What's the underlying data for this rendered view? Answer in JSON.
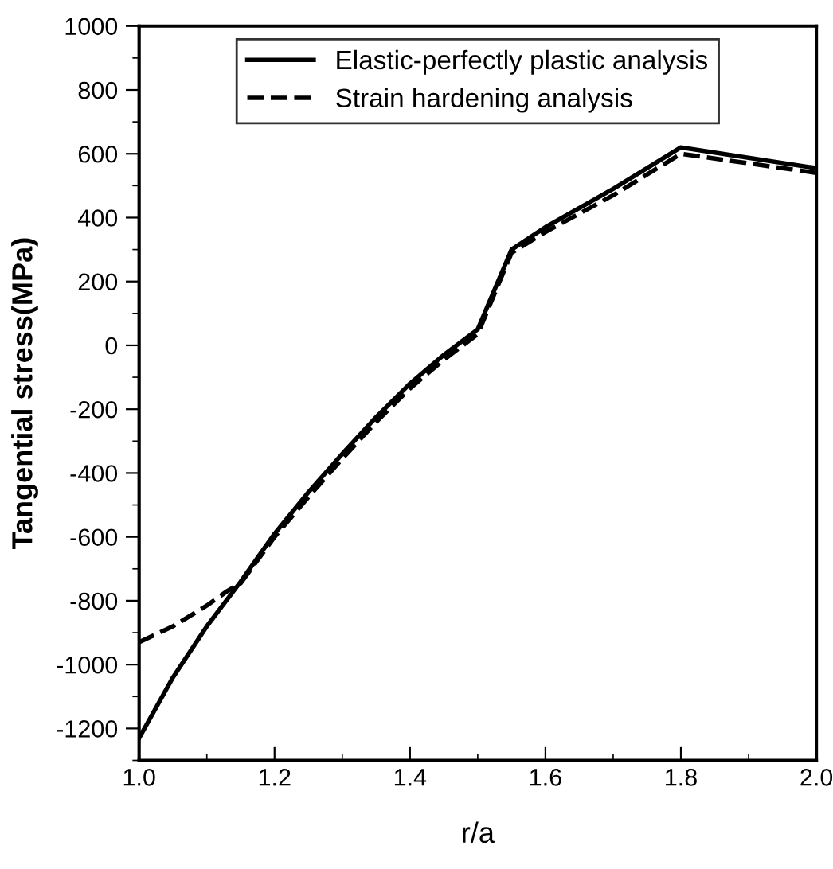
{
  "chart_data": {
    "type": "line",
    "xlabel": "r/a",
    "ylabel": "Tangential stress(MPa)",
    "xlim": [
      1.0,
      2.0
    ],
    "xticks": [
      {
        "value": 1.0,
        "label": "1.0"
      },
      {
        "value": 1.2,
        "label": "1.2"
      },
      {
        "value": 1.4,
        "label": "1.4"
      },
      {
        "value": 1.6,
        "label": "1.6"
      },
      {
        "value": 1.8,
        "label": "1.8"
      },
      {
        "value": 2.0,
        "label": "2.0"
      }
    ],
    "ylim": [
      -1300,
      1000
    ],
    "yticks": [
      -1200,
      -1000,
      -800,
      -600,
      -400,
      -200,
      0,
      200,
      400,
      600,
      800,
      1000
    ],
    "grid": false,
    "legend": "top",
    "marker": "none",
    "series": [
      {
        "name": "Elastic-perfectly plastic analysis",
        "color": "#000000",
        "line_style": "solid",
        "x": [
          1.0,
          1.05,
          1.1,
          1.15,
          1.2,
          1.25,
          1.3,
          1.35,
          1.4,
          1.45,
          1.5,
          1.55,
          1.6,
          1.7,
          1.8,
          2.0
        ],
        "values": [
          -1230,
          -1040,
          -880,
          -740,
          -590,
          -460,
          -340,
          -225,
          -120,
          -30,
          50,
          300,
          370,
          490,
          620,
          555
        ]
      },
      {
        "name": "Strain hardening analysis",
        "color": "#000000",
        "line_style": "dashed",
        "x": [
          1.0,
          1.05,
          1.1,
          1.13,
          1.15,
          1.2,
          1.25,
          1.3,
          1.35,
          1.4,
          1.45,
          1.5,
          1.55,
          1.6,
          1.7,
          1.8,
          2.0
        ],
        "values": [
          -930,
          -880,
          -815,
          -770,
          -745,
          -600,
          -475,
          -355,
          -240,
          -135,
          -45,
          35,
          290,
          355,
          470,
          600,
          540
        ]
      }
    ]
  }
}
